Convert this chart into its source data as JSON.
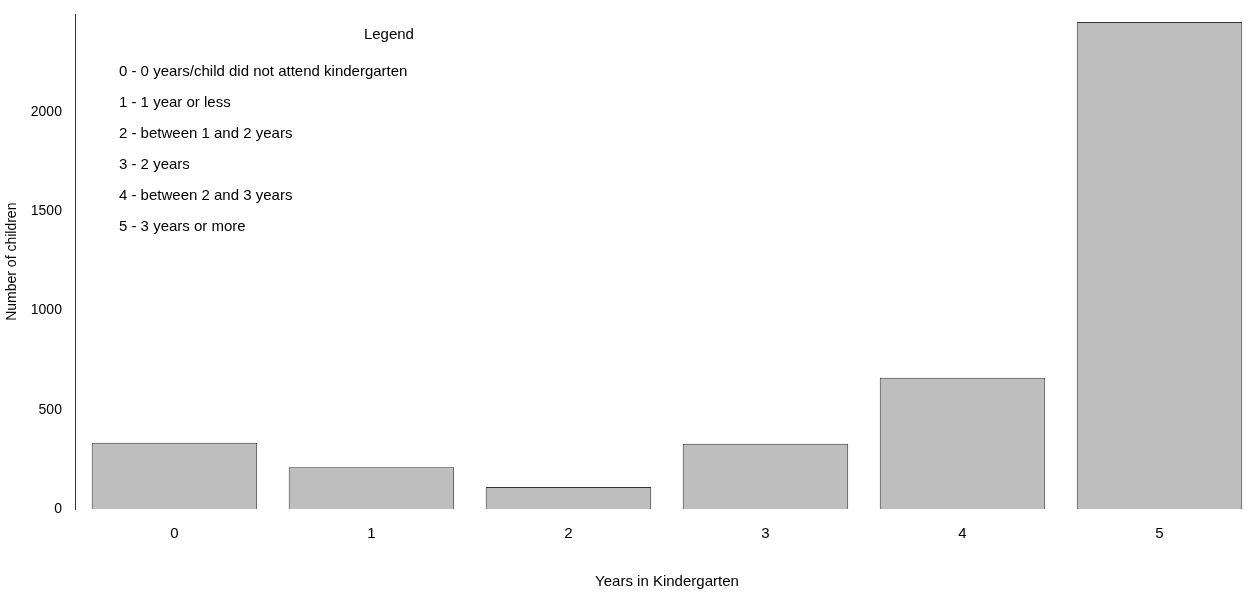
{
  "chart_data": {
    "type": "bar",
    "xlabel": "Years in Kindergarten",
    "ylabel": "Number of children",
    "categories": [
      "0",
      "1",
      "2",
      "3",
      "4",
      "5"
    ],
    "values": [
      334,
      210,
      111,
      329,
      661,
      2452
    ],
    "color": "#bebebe",
    "ylim": [
      0,
      2490
    ],
    "yticks": [
      0,
      500,
      1000,
      1500,
      2000
    ],
    "annotations": [
      "Legend",
      "0 - 0 years/child did not attend kindergarten",
      "1 - 1 year or less",
      "2 - between 1 and 2 years",
      "3 - 2 years",
      "4 - between 2 and 3 years",
      "5 - 3 years or more"
    ]
  }
}
